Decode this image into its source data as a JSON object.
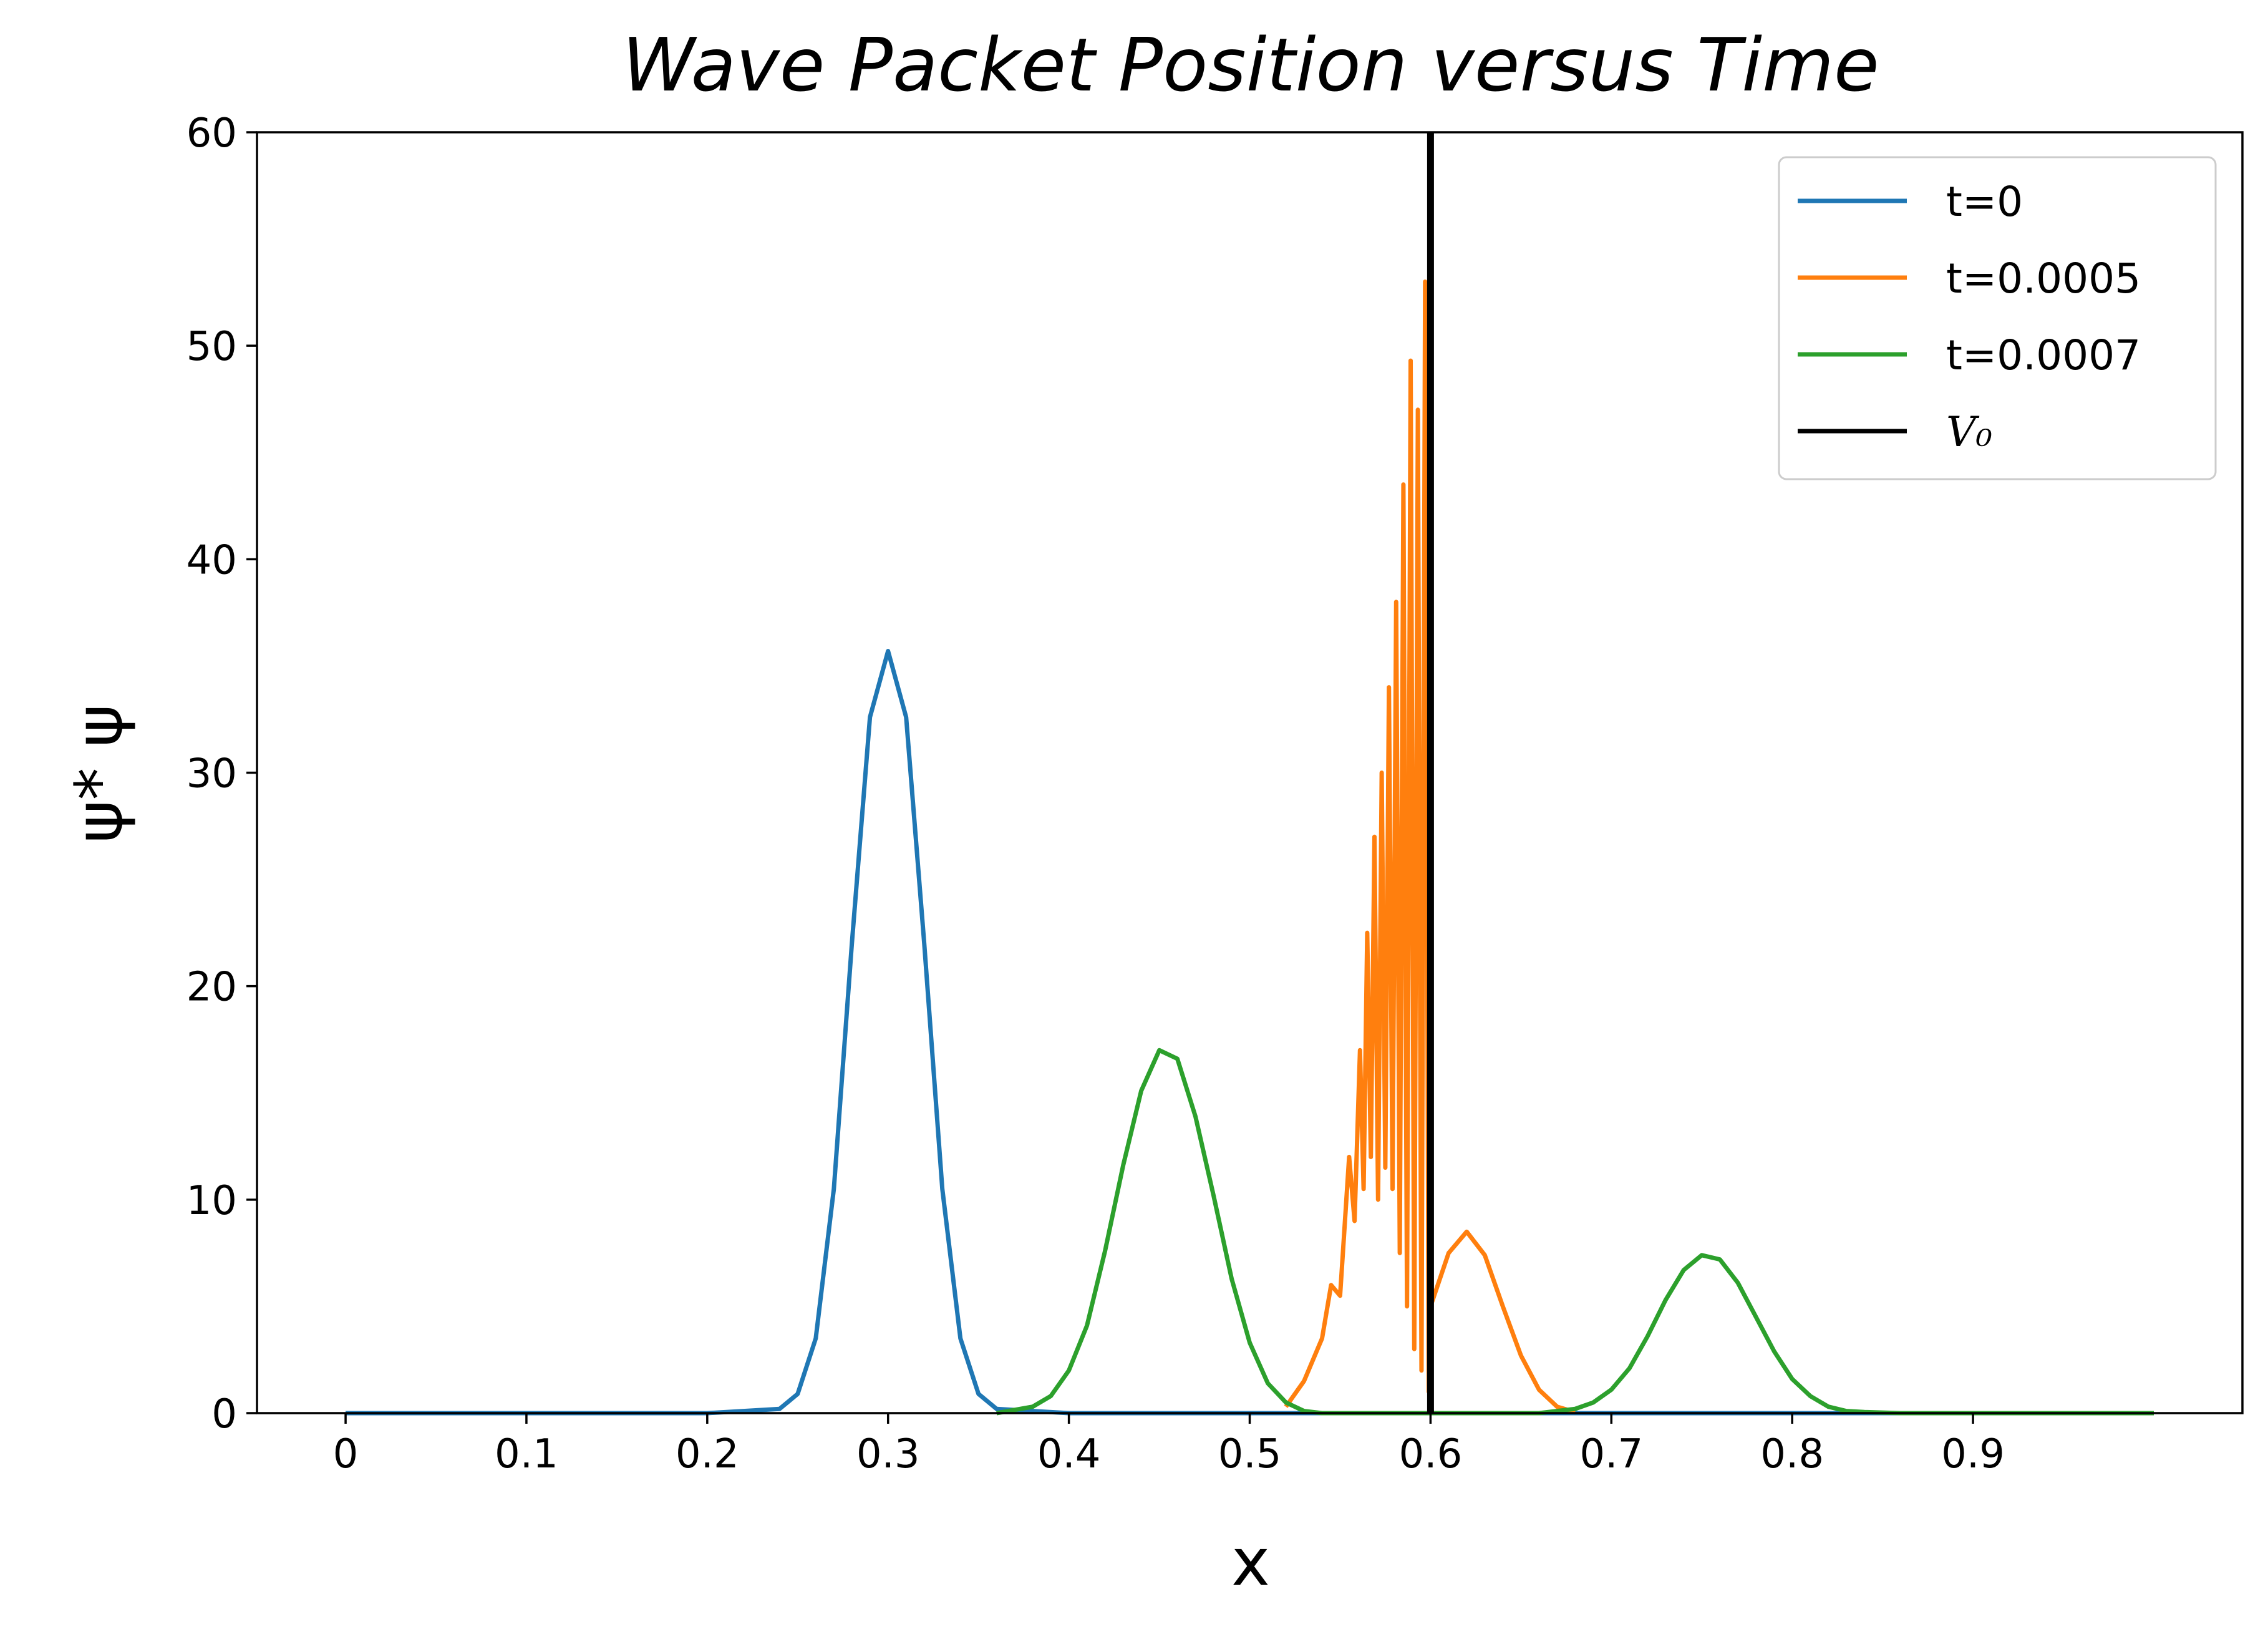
{
  "chart_data": {
    "type": "line",
    "title": "Wave Packet Position versus Time",
    "xlabel": "x",
    "ylabel": "ψ* ψ",
    "xlim": [
      -0.049,
      1.049
    ],
    "ylim": [
      0,
      60
    ],
    "xticks": [
      "0",
      "0.1",
      "0.2",
      "0.3",
      "0.4",
      "0.5",
      "0.6",
      "0.7",
      "0.8",
      "0.9"
    ],
    "yticks": [
      "0",
      "10",
      "20",
      "30",
      "40",
      "50",
      "60"
    ],
    "grid": false,
    "legend_position": "top-right",
    "series": [
      {
        "name": "t=0",
        "color": "#1f77b4",
        "x": [
          0,
          0.2,
          0.24,
          0.25,
          0.26,
          0.27,
          0.28,
          0.29,
          0.3,
          0.31,
          0.32,
          0.33,
          0.34,
          0.35,
          0.36,
          0.4,
          1.0
        ],
        "y": [
          0,
          0,
          0.2,
          0.9,
          3.5,
          10.5,
          22.0,
          32.6,
          35.7,
          32.6,
          22.0,
          10.5,
          3.5,
          0.9,
          0.2,
          0,
          0
        ]
      },
      {
        "name": "t=0.0005",
        "color": "#ff7f0e",
        "x": [
          0.52,
          0.53,
          0.54,
          0.545,
          0.55,
          0.555,
          0.558,
          0.561,
          0.563,
          0.565,
          0.567,
          0.569,
          0.571,
          0.573,
          0.575,
          0.577,
          0.579,
          0.581,
          0.583,
          0.585,
          0.587,
          0.589,
          0.591,
          0.593,
          0.595,
          0.597,
          0.599,
          0.6,
          0.61,
          0.62,
          0.63,
          0.64,
          0.65,
          0.66,
          0.67,
          0.68
        ],
        "y": [
          0.3,
          1.5,
          3.5,
          6.0,
          5.5,
          12.0,
          9.0,
          17.0,
          10.5,
          22.5,
          12.0,
          27.0,
          10.0,
          30.0,
          11.5,
          34.0,
          10.5,
          38.0,
          7.5,
          43.5,
          5.0,
          49.3,
          3.0,
          47.0,
          2.0,
          53.0,
          1.0,
          5.0,
          7.5,
          8.5,
          7.4,
          5.0,
          2.7,
          1.1,
          0.3,
          0.05
        ]
      },
      {
        "name": "t=0.0007",
        "color": "#2ca02c",
        "x": [
          0.36,
          0.38,
          0.39,
          0.4,
          0.41,
          0.42,
          0.43,
          0.44,
          0.45,
          0.46,
          0.47,
          0.48,
          0.49,
          0.5,
          0.51,
          0.52,
          0.53,
          0.54,
          0.58,
          0.66,
          0.68,
          0.69,
          0.7,
          0.71,
          0.72,
          0.73,
          0.74,
          0.75,
          0.76,
          0.77,
          0.78,
          0.79,
          0.8,
          0.81,
          0.82,
          0.83,
          0.84,
          0.86,
          1.0
        ],
        "y": [
          0,
          0.3,
          0.8,
          2.0,
          4.1,
          7.6,
          11.6,
          15.1,
          17.0,
          16.6,
          13.9,
          10.2,
          6.3,
          3.3,
          1.4,
          0.5,
          0.1,
          0,
          0,
          0,
          0.2,
          0.5,
          1.1,
          2.1,
          3.6,
          5.3,
          6.7,
          7.4,
          7.2,
          6.1,
          4.5,
          2.9,
          1.6,
          0.8,
          0.3,
          0.1,
          0.05,
          0,
          0
        ]
      },
      {
        "name": "V₀",
        "color": "#000000",
        "x": [
          0.6,
          0.6
        ],
        "y": [
          0,
          60
        ]
      }
    ]
  }
}
